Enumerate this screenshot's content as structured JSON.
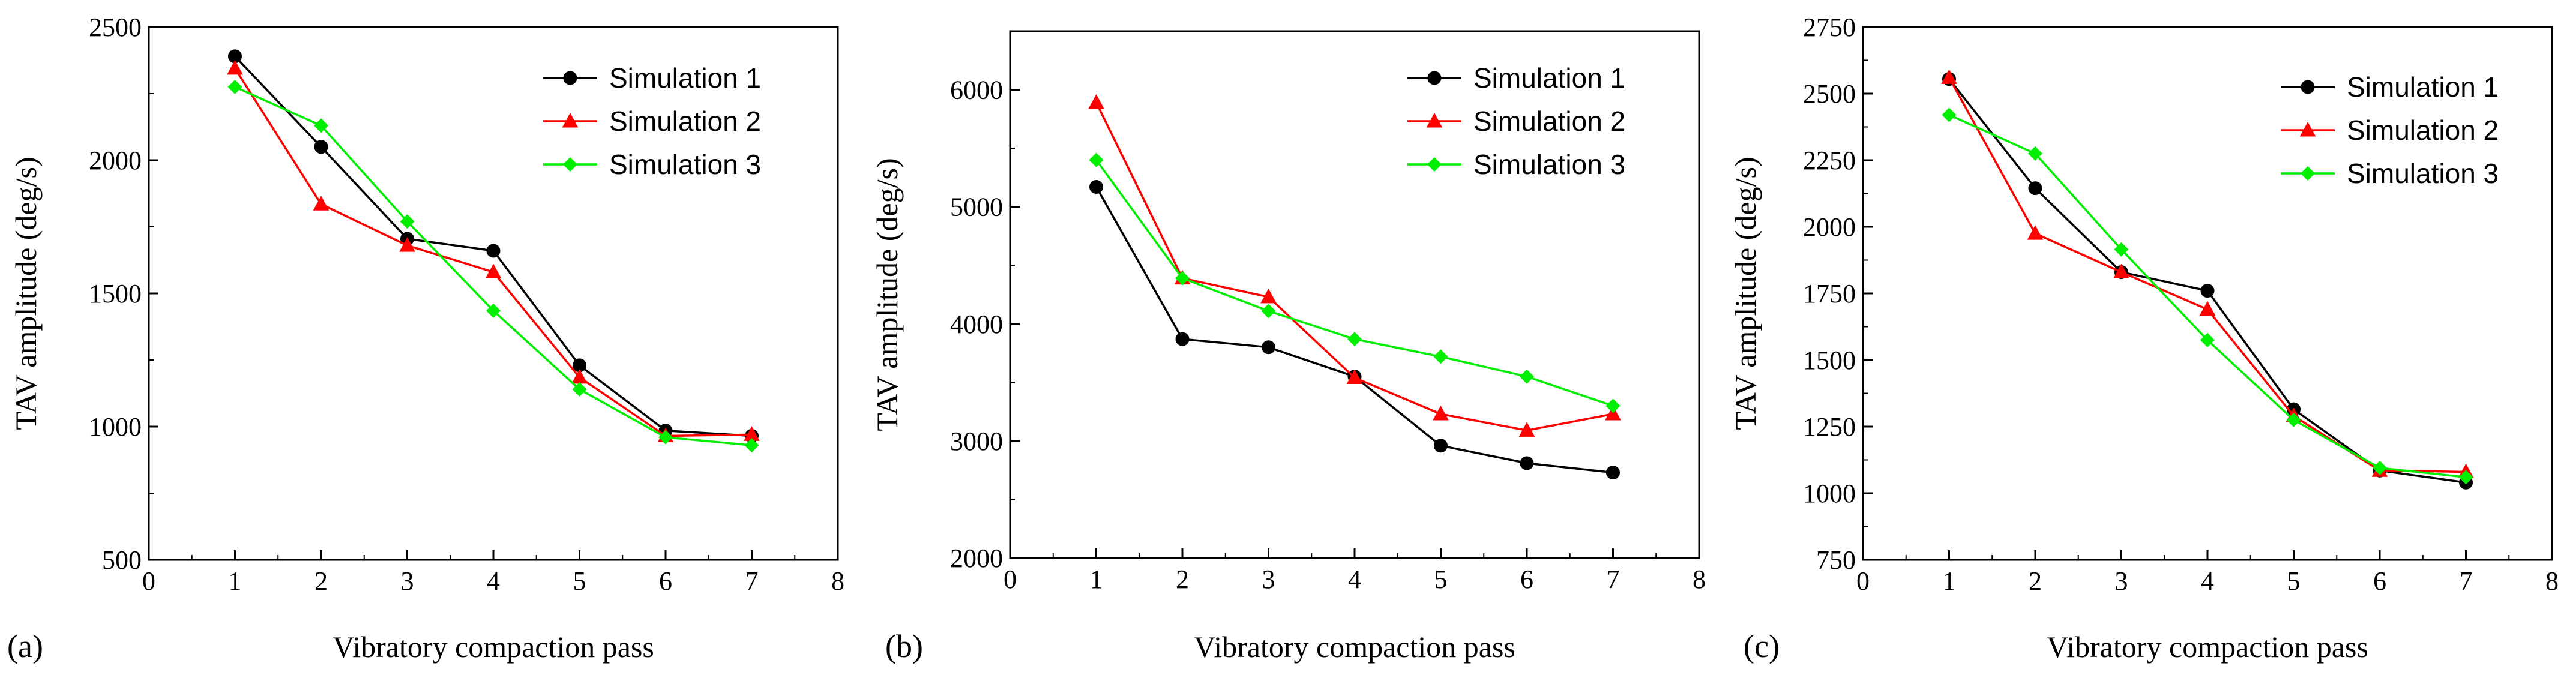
{
  "chart_data": [
    {
      "type": "line",
      "panel_label": "(a)",
      "xlabel": "Vibratory compaction pass",
      "ylabel": "TAV amplitude (deg/s)",
      "xlim": [
        0,
        8
      ],
      "ylim": [
        500,
        2500
      ],
      "xticks": [
        0,
        1,
        2,
        3,
        4,
        5,
        6,
        7,
        8
      ],
      "yticks": [
        500,
        1000,
        1500,
        2000,
        2500
      ],
      "x": [
        1,
        2,
        3,
        4,
        5,
        6,
        7
      ],
      "legend_position": "top-right",
      "series": [
        {
          "name": "Simulation 1",
          "color": "#000000",
          "marker": "circle",
          "values": [
            2390,
            2050,
            1705,
            1660,
            1230,
            985,
            965
          ]
        },
        {
          "name": "Simulation 2",
          "color": "#ff0000",
          "marker": "triangle",
          "values": [
            2345,
            1835,
            1680,
            1580,
            1185,
            965,
            970
          ]
        },
        {
          "name": "Simulation 3",
          "color": "#00ee00",
          "marker": "diamond",
          "values": [
            2275,
            2130,
            1770,
            1435,
            1140,
            960,
            930
          ]
        }
      ]
    },
    {
      "type": "line",
      "panel_label": "(b)",
      "xlabel": "Vibratory compaction pass",
      "ylabel": "TAV amplitude (deg/s)",
      "xlim": [
        0,
        8
      ],
      "ylim": [
        2000,
        6500
      ],
      "xticks": [
        0,
        1,
        2,
        3,
        4,
        5,
        6,
        7,
        8
      ],
      "yticks": [
        2000,
        3000,
        4000,
        5000,
        6000
      ],
      "x": [
        1,
        2,
        3,
        4,
        5,
        6,
        7
      ],
      "legend_position": "top-right",
      "series": [
        {
          "name": "Simulation 1",
          "color": "#000000",
          "marker": "circle",
          "values": [
            5170,
            3870,
            3800,
            3550,
            2960,
            2810,
            2730
          ]
        },
        {
          "name": "Simulation 2",
          "color": "#ff0000",
          "marker": "triangle",
          "values": [
            5890,
            4390,
            4230,
            3540,
            3230,
            3090,
            3230
          ]
        },
        {
          "name": "Simulation 3",
          "color": "#00ee00",
          "marker": "diamond",
          "values": [
            5400,
            4390,
            4110,
            3870,
            3720,
            3550,
            3300
          ]
        }
      ]
    },
    {
      "type": "line",
      "panel_label": "(c)",
      "xlabel": "Vibratory compaction pass",
      "ylabel": "TAV amplitude (deg/s)",
      "xlim": [
        0,
        8
      ],
      "ylim": [
        750,
        2750
      ],
      "xticks": [
        0,
        1,
        2,
        3,
        4,
        5,
        6,
        7,
        8
      ],
      "yticks": [
        750,
        1000,
        1250,
        1500,
        1750,
        2000,
        2250,
        2500,
        2750
      ],
      "x": [
        1,
        2,
        3,
        4,
        5,
        6,
        7
      ],
      "legend_position": "top-right",
      "series": [
        {
          "name": "Simulation 1",
          "color": "#000000",
          "marker": "circle",
          "values": [
            2555,
            2145,
            1830,
            1760,
            1315,
            1085,
            1040
          ]
        },
        {
          "name": "Simulation 2",
          "color": "#ff0000",
          "marker": "triangle",
          "values": [
            2560,
            1975,
            1830,
            1690,
            1290,
            1085,
            1080
          ]
        },
        {
          "name": "Simulation 3",
          "color": "#00ee00",
          "marker": "diamond",
          "values": [
            2420,
            2275,
            1915,
            1575,
            1275,
            1095,
            1060
          ]
        }
      ]
    }
  ]
}
